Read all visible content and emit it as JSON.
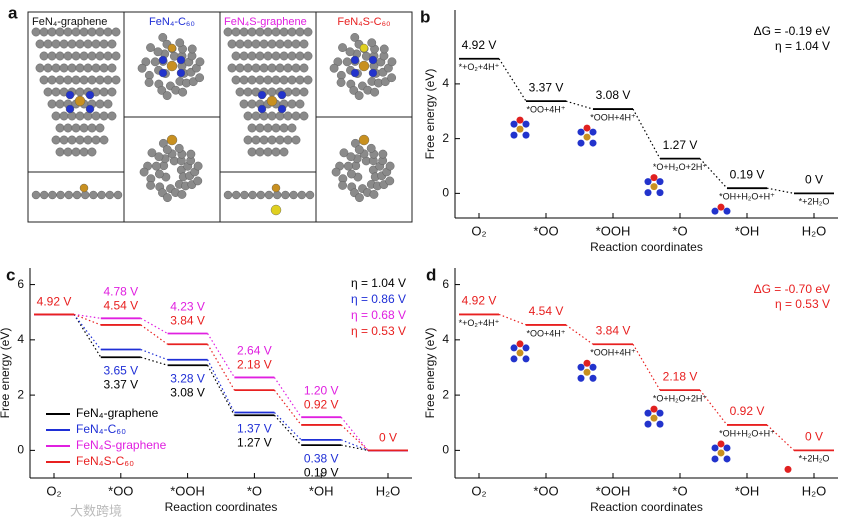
{
  "panel_a": {
    "panel_label": "a",
    "titles": [
      "FeN₄-graphene",
      "FeN₄-C₆₀",
      "FeN₄S-graphene",
      "FeN₄S-C₆₀"
    ]
  },
  "watermark": "大数跨境",
  "chart_data": [
    {
      "type": "energy_diagram",
      "panel_label": "b",
      "categories": [
        "O₂",
        "*OO",
        "*OOH",
        "*O",
        "*OH",
        "H₂O"
      ],
      "values": [
        4.92,
        3.37,
        3.08,
        1.27,
        0.19,
        0
      ],
      "value_labels": [
        "4.92 V",
        "3.37 V",
        "3.08 V",
        "1.27 V",
        "0.19 V",
        "0 V"
      ],
      "step_labels": [
        "*+O₂+4H⁺",
        "*OO+4H⁺",
        "*OOH+4H⁺",
        "*O+H₂O+2H⁺",
        "*OH+H₂O+H⁺",
        "*+2H₂O"
      ],
      "color": "#000000",
      "annotations": [
        "ΔG = -0.19 eV",
        "η = 1.04 V"
      ],
      "ylabel": "Free energy (eV)",
      "xlabel": "Reaction coordinates",
      "ylim": [
        -0.9,
        6.7
      ],
      "yticks": [
        0,
        2,
        4
      ]
    },
    {
      "type": "energy_diagram",
      "panel_label": "c",
      "categories": [
        "O₂",
        "*OO",
        "*OOH",
        "*O",
        "*OH",
        "H₂O"
      ],
      "series": [
        {
          "name": "FeN₄-graphene",
          "color": "#000000",
          "annotation": "η = 1.04 V",
          "values": [
            4.92,
            3.37,
            3.08,
            1.27,
            0.19,
            0
          ],
          "value_labels": [
            null,
            "3.37 V",
            "3.08 V",
            "1.27 V",
            "0.19 V",
            null
          ]
        },
        {
          "name": "FeN₄-C₆₀",
          "color": "#1f2fd6",
          "annotation": "η = 0.86 V",
          "values": [
            4.92,
            3.65,
            3.28,
            1.37,
            0.38,
            0
          ],
          "value_labels": [
            null,
            "3.65 V",
            "3.28 V",
            "1.37 V",
            "0.38 V",
            null
          ]
        },
        {
          "name": "FeN₄S-graphene",
          "color": "#e020e0",
          "annotation": "η = 0.68 V",
          "values": [
            4.92,
            4.78,
            4.23,
            2.64,
            1.2,
            0
          ],
          "value_labels": [
            null,
            "4.78 V",
            "4.23 V",
            "2.64 V",
            "1.20 V",
            null
          ]
        },
        {
          "name": "FeN₄S-C₆₀",
          "color": "#e82020",
          "annotation": "η = 0.53 V",
          "values": [
            4.92,
            4.54,
            3.84,
            2.18,
            0.92,
            0
          ],
          "value_labels": [
            "4.92 V",
            "4.54 V",
            "3.84 V",
            "2.18 V",
            "0.92 V",
            "0 V"
          ]
        }
      ],
      "ylabel": "Free energy (eV)",
      "xlabel": "Reaction coordinates",
      "ylim": [
        -1,
        6.6
      ],
      "yticks": [
        0,
        2,
        4,
        6
      ]
    },
    {
      "type": "energy_diagram",
      "panel_label": "d",
      "categories": [
        "O₂",
        "*OO",
        "*OOH",
        "*O",
        "*OH",
        "H₂O"
      ],
      "values": [
        4.92,
        4.54,
        3.84,
        2.18,
        0.92,
        0
      ],
      "value_labels": [
        "4.92 V",
        "4.54 V",
        "3.84 V",
        "2.18 V",
        "0.92 V",
        "0 V"
      ],
      "step_labels": [
        "*+O₂+4H⁺",
        "*OO+4H⁺",
        "*OOH+4H⁺",
        "*O+H₂O+2H⁺",
        "*OH+H₂O+H⁺",
        "*+2H₂O"
      ],
      "color": "#e82020",
      "annotations": [
        "ΔG = -0.70 eV",
        "η = 0.53 V"
      ],
      "ylabel": "Free energy (eV)",
      "xlabel": "Reaction coordinates",
      "ylim": [
        -1,
        6.6
      ],
      "yticks": [
        0,
        2,
        4,
        6
      ]
    }
  ]
}
